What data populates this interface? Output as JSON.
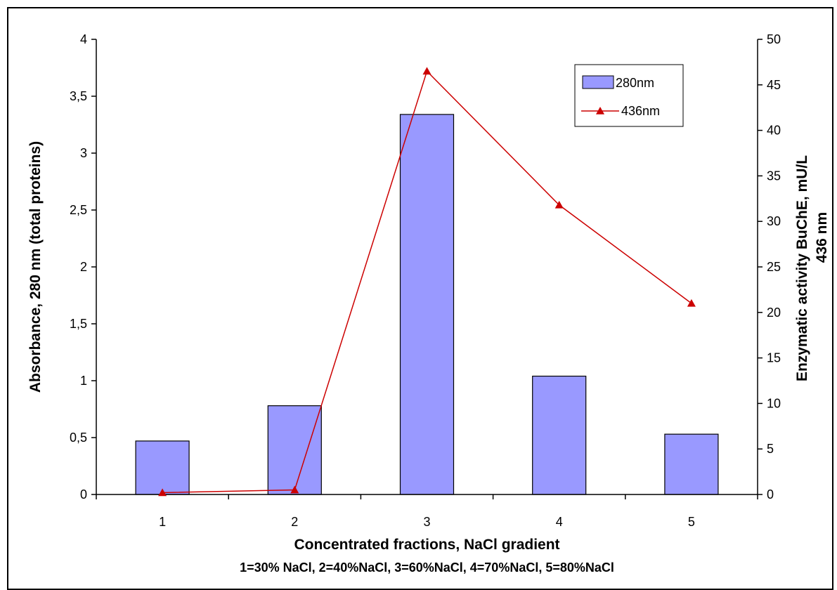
{
  "chart_data": {
    "type": "bar",
    "categories": [
      "1",
      "2",
      "3",
      "4",
      "5"
    ],
    "series": [
      {
        "name": "280nm",
        "kind": "bar",
        "axis": "left",
        "color": "#9999ff",
        "values": [
          0.47,
          0.78,
          3.34,
          1.04,
          0.53
        ]
      },
      {
        "name": "436nm",
        "kind": "line",
        "axis": "right",
        "color": "#cc0000",
        "marker": "triangle",
        "values": [
          0.2,
          0.5,
          46.5,
          31.8,
          21.0
        ]
      }
    ],
    "xlabel": "Concentrated fractions, NaCl gradient",
    "xnote": "1=30% NaCl, 2=40%NaCl, 3=60%NaCl, 4=70%NaCl, 5=80%NaCl",
    "ylabel": "Absorbance, 280 nm (total proteins)",
    "y2label_line1": "Enzymatic activity BuChE, mU/L",
    "y2label_line2": "436 nm",
    "ylim": [
      0,
      4
    ],
    "yticks": [
      "0",
      "0,5",
      "1",
      "1,5",
      "2",
      "2,5",
      "3",
      "3,5",
      "4"
    ],
    "y2lim": [
      0,
      50
    ],
    "y2ticks": [
      "0",
      "5",
      "10",
      "15",
      "20",
      "25",
      "30",
      "35",
      "40",
      "45",
      "50"
    ],
    "grid": false,
    "legend_position": "top-right"
  }
}
